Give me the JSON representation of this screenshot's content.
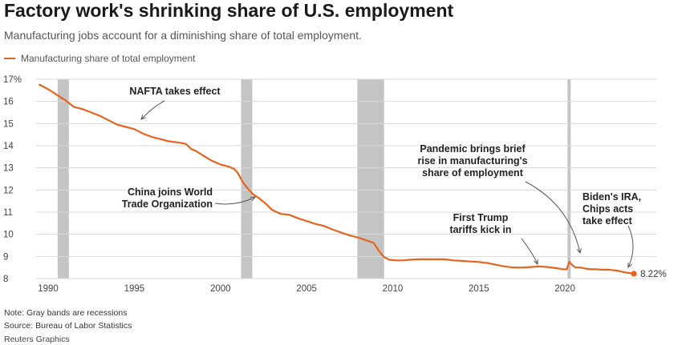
{
  "header": {
    "title": "Factory work's shrinking share of U.S. employment",
    "subtitle": "Manufacturing jobs account for a diminishing share of total employment."
  },
  "legend": {
    "label": "Manufacturing share of total employment"
  },
  "footer": {
    "note": "Note: Gray bands are recessions",
    "source": "Source: Bureau of Labor Statistics",
    "credit": "Reuters Graphics"
  },
  "colors": {
    "line": "#e8641e",
    "recession": "#c4c4c4",
    "grid": "#d8d8d8",
    "annotation": "#555555"
  },
  "chart_data": {
    "type": "line",
    "title": "Factory work's shrinking share of U.S. employment",
    "subtitle": "Manufacturing jobs account for a diminishing share of total employment.",
    "xlim": [
      1989.3,
      2025.3
    ],
    "ylim": [
      8,
      17
    ],
    "yticks": [
      8,
      9,
      10,
      11,
      12,
      13,
      14,
      15,
      16,
      17
    ],
    "ytick_labels": [
      "8",
      "9",
      "10",
      "11",
      "12",
      "13",
      "14",
      "15",
      "16",
      "17%"
    ],
    "xticks": [
      1990,
      1995,
      2000,
      2005,
      2010,
      2015,
      2020
    ],
    "xtick_labels": [
      "1990",
      "1995",
      "2000",
      "2005",
      "2010",
      "2015",
      "2020"
    ],
    "grid": true,
    "legend_position": "top-left",
    "recessions": [
      [
        1990.55,
        1991.2
      ],
      [
        2001.2,
        2001.85
      ],
      [
        2007.95,
        2009.5
      ],
      [
        2020.15,
        2020.33
      ]
    ],
    "series": [
      {
        "name": "Manufacturing share of total employment",
        "x": [
          1989.5,
          1990.0,
          1990.5,
          1991.0,
          1991.5,
          1992.0,
          1992.5,
          1993.0,
          1993.5,
          1994.0,
          1994.5,
          1995.0,
          1995.5,
          1996.0,
          1996.5,
          1997.0,
          1997.5,
          1998.0,
          1998.3,
          1998.6,
          1999.0,
          1999.5,
          2000.0,
          2000.5,
          2000.8,
          2001.0,
          2001.3,
          2001.6,
          2001.9,
          2002.2,
          2002.6,
          2003.0,
          2003.5,
          2004.0,
          2004.5,
          2005.0,
          2005.5,
          2006.0,
          2006.5,
          2007.0,
          2007.5,
          2008.0,
          2008.5,
          2008.9,
          2009.2,
          2009.5,
          2009.8,
          2010.2,
          2010.6,
          2011.0,
          2011.5,
          2012.0,
          2012.5,
          2013.0,
          2013.5,
          2014.0,
          2014.5,
          2015.0,
          2015.5,
          2016.0,
          2016.5,
          2017.0,
          2017.5,
          2018.0,
          2018.5,
          2019.0,
          2019.5,
          2019.9,
          2020.1,
          2020.25,
          2020.4,
          2020.6,
          2020.9,
          2021.2,
          2021.5,
          2021.8,
          2022.1,
          2022.5,
          2023.0,
          2023.5,
          2024.0
        ],
        "y": [
          16.75,
          16.55,
          16.3,
          16.05,
          15.75,
          15.65,
          15.5,
          15.35,
          15.15,
          14.95,
          14.85,
          14.75,
          14.55,
          14.4,
          14.3,
          14.2,
          14.15,
          14.08,
          13.85,
          13.75,
          13.55,
          13.32,
          13.15,
          13.05,
          12.95,
          12.78,
          12.35,
          12.05,
          11.8,
          11.65,
          11.4,
          11.1,
          10.92,
          10.88,
          10.72,
          10.6,
          10.47,
          10.38,
          10.22,
          10.08,
          9.95,
          9.85,
          9.72,
          9.6,
          9.25,
          8.97,
          8.85,
          8.82,
          8.82,
          8.85,
          8.87,
          8.87,
          8.87,
          8.87,
          8.82,
          8.8,
          8.77,
          8.75,
          8.7,
          8.62,
          8.55,
          8.5,
          8.5,
          8.52,
          8.55,
          8.52,
          8.47,
          8.42,
          8.42,
          8.76,
          8.62,
          8.5,
          8.5,
          8.45,
          8.42,
          8.42,
          8.4,
          8.4,
          8.36,
          8.28,
          8.22
        ]
      }
    ],
    "end_label": "8.22%",
    "annotations": [
      {
        "id": "nafta",
        "lines": [
          "NAFTA takes effect"
        ],
        "anchor": "middle",
        "arrow_x": 1993.9,
        "arrow_y": 15.1
      },
      {
        "id": "wto",
        "lines": [
          "China joins World",
          "Trade Organization"
        ],
        "anchor": "end",
        "arrow_x": 2001.5,
        "arrow_y": 11.95
      },
      {
        "id": "pandemic",
        "lines": [
          "Pandemic brings brief",
          "rise in manufacturing's",
          "share of employment"
        ],
        "anchor": "middle",
        "arrow_x": 2020.2,
        "arrow_y": 8.85
      },
      {
        "id": "trump",
        "lines": [
          "First Trump",
          "tariffs kick in"
        ],
        "anchor": "middle",
        "arrow_x": 2017.8,
        "arrow_y": 8.6
      },
      {
        "id": "biden",
        "lines": [
          "Biden's IRA,",
          "Chips acts",
          "take effect"
        ],
        "anchor": "start",
        "arrow_x": 2023.3,
        "arrow_y": 8.4
      }
    ]
  }
}
